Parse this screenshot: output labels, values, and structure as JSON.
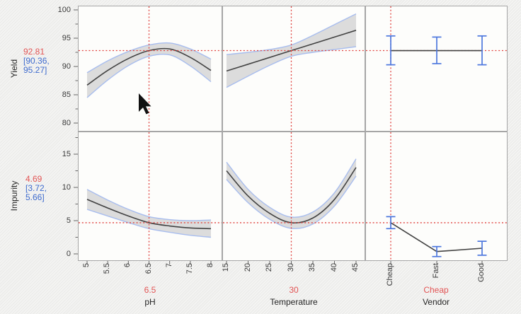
{
  "colors": {
    "canvas_bg": "#f0f0ee",
    "panel_bg": "#fdfdfb",
    "panel_border": "#a6a6a6",
    "curve_gray": "#424242",
    "band_fill": "#dcdcdc",
    "band_edge": "#a8bdee",
    "crosshair_red": "#e0413d",
    "current_value_red": "#e25555",
    "ci_blue": "#3e6bce",
    "error_bar_blue": "#4d77de",
    "tick_color": "#666666",
    "tick_text": "#3b3b3b"
  },
  "chart_data": {
    "type": "profiler-matrix",
    "responses": [
      {
        "name": "Yield",
        "current": "92.81",
        "current_value": 92.81,
        "ci_lines": [
          "[90.36,",
          "95.27]"
        ],
        "axis": {
          "min": 80,
          "max": 100,
          "major_ticks": [
            100,
            95,
            90,
            85,
            80
          ],
          "minor_ticks": [
            97.5,
            92.5,
            87.5,
            82.5
          ]
        }
      },
      {
        "name": "Impurity",
        "current": "4.69",
        "current_value": 4.69,
        "ci_lines": [
          "[3.72,",
          "5.66]"
        ],
        "axis": {
          "min": 0,
          "max": 15,
          "major_ticks": [
            15,
            10,
            5,
            0
          ],
          "minor_ticks": [
            17.5,
            12.5,
            7.5,
            2.5
          ]
        }
      }
    ],
    "factors": [
      {
        "name": "pH",
        "current": "6.5",
        "current_value": 6.5,
        "type": "continuous",
        "range": [
          5,
          8
        ],
        "tick_labels": [
          "5",
          "5.5",
          "6",
          "6.5",
          "7",
          "7.5",
          "8"
        ],
        "tick_values": [
          5,
          5.5,
          6,
          6.5,
          7,
          7.5,
          8
        ]
      },
      {
        "name": "Temperature",
        "current": "30",
        "current_value": 30,
        "type": "continuous",
        "range": [
          15,
          45
        ],
        "tick_labels": [
          "15",
          "20",
          "25",
          "30",
          "35",
          "40",
          "45"
        ],
        "tick_values": [
          15,
          20,
          25,
          30,
          35,
          40,
          45
        ]
      },
      {
        "name": "Vendor",
        "current": "Cheap",
        "type": "categorical",
        "levels": [
          "Cheap",
          "Fast",
          "Good"
        ],
        "current_level": 0
      }
    ],
    "cells": [
      {
        "response": 0,
        "factor": 0,
        "x": [
          5,
          5.5,
          6,
          6.5,
          7,
          7.5,
          8
        ],
        "y": [
          86.7,
          89.3,
          91.4,
          92.81,
          93.1,
          91.6,
          89.3
        ],
        "lo": [
          84.5,
          87.6,
          90.15,
          91.8,
          92.05,
          90.1,
          87.3
        ],
        "hi": [
          88.9,
          91.0,
          92.65,
          93.8,
          94.15,
          93.1,
          91.3
        ]
      },
      {
        "response": 0,
        "factor": 1,
        "x": [
          15,
          20,
          25,
          30,
          35,
          40,
          45
        ],
        "y": [
          89.2,
          90.4,
          91.6,
          92.81,
          94.0,
          95.2,
          96.4
        ],
        "lo": [
          86.3,
          88.3,
          90.2,
          91.8,
          92.5,
          93.0,
          93.5
        ],
        "hi": [
          92.1,
          92.5,
          93.0,
          93.8,
          95.5,
          97.4,
          99.3
        ]
      },
      {
        "response": 0,
        "factor": 2,
        "y": [
          92.81,
          92.81,
          92.81
        ],
        "lo": [
          90.3,
          90.5,
          90.3
        ],
        "hi": [
          95.4,
          95.2,
          95.4
        ]
      },
      {
        "response": 1,
        "factor": 0,
        "x": [
          5,
          5.5,
          6,
          6.5,
          7,
          7.5,
          8
        ],
        "y": [
          8.2,
          6.9,
          5.7,
          4.69,
          4.2,
          3.9,
          3.8
        ],
        "lo": [
          6.7,
          5.7,
          4.7,
          3.8,
          3.25,
          2.8,
          2.5
        ],
        "hi": [
          9.7,
          8.1,
          6.7,
          5.6,
          5.15,
          5.0,
          5.1
        ]
      },
      {
        "response": 1,
        "factor": 1,
        "x": [
          15,
          20,
          25,
          30,
          35,
          40,
          45
        ],
        "y": [
          12.5,
          8.7,
          6.1,
          4.69,
          5.4,
          8.2,
          13.0
        ],
        "lo": [
          11.2,
          7.7,
          5.2,
          3.84,
          4.5,
          7.2,
          11.7
        ],
        "hi": [
          13.8,
          9.7,
          7.0,
          5.54,
          6.3,
          9.2,
          14.3
        ]
      },
      {
        "response": 1,
        "factor": 2,
        "y": [
          4.69,
          0.35,
          0.85
        ],
        "lo": [
          3.8,
          -0.4,
          -0.2
        ],
        "hi": [
          5.6,
          1.1,
          1.9
        ]
      }
    ]
  }
}
